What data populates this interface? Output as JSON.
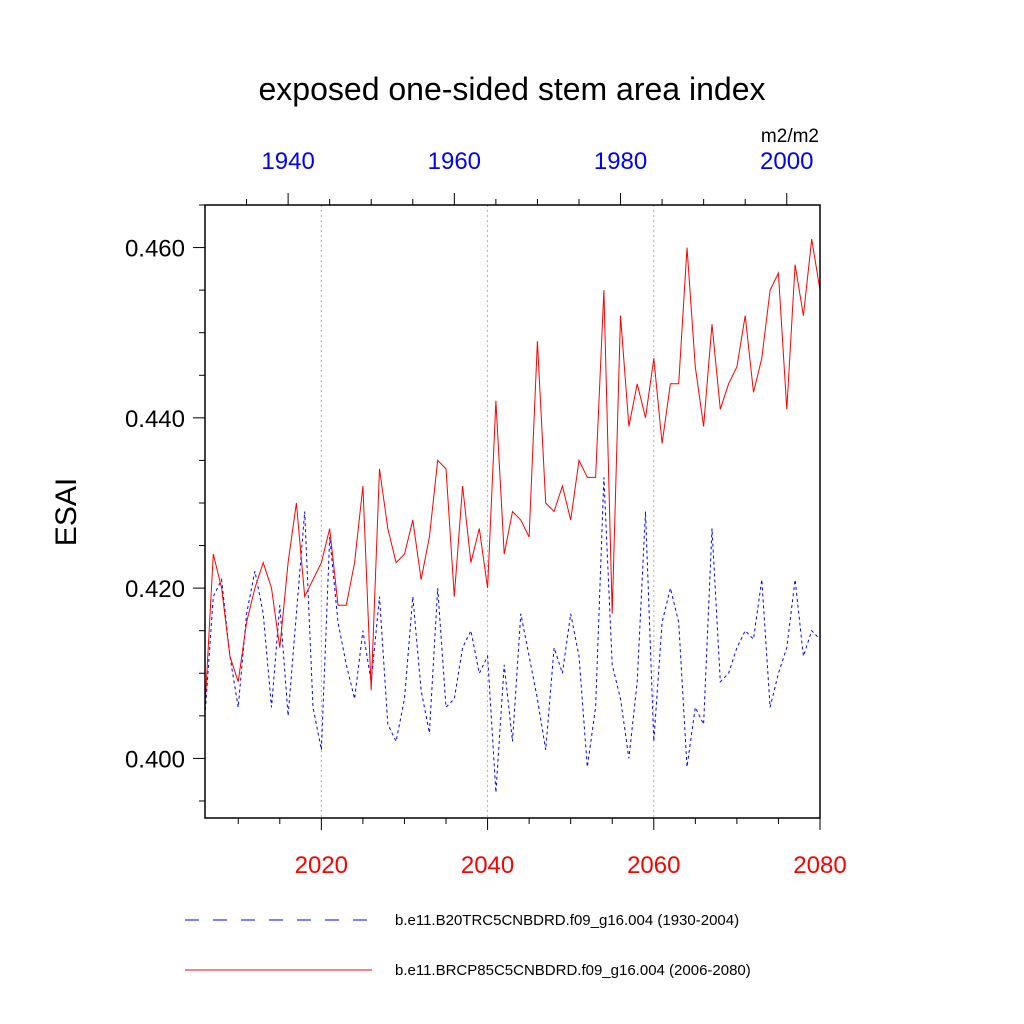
{
  "chart_data": {
    "type": "line",
    "title": "exposed one-sided stem area index",
    "ylabel": "ESAI",
    "units": "m2/m2",
    "ylim": [
      0.393,
      0.465
    ],
    "yticks": [
      "0.400",
      "0.420",
      "0.440",
      "0.460"
    ],
    "bottom_axis": {
      "range": [
        2006,
        2080
      ],
      "ticks": [
        "2020",
        "2040",
        "2060",
        "2080"
      ],
      "color": "#ff0000"
    },
    "top_axis": {
      "range": [
        1930,
        2004
      ],
      "ticks": [
        "1940",
        "1960",
        "1980",
        "2000"
      ],
      "color": "#0000ff"
    },
    "grid": "vertical dotted at 2020, 2040, 2060",
    "legend_position": "bottom",
    "series": [
      {
        "name": "b.e11.B20TRC5CNBDRD.f09_g16.004 (1930-2004)",
        "color": "#0000ff",
        "style": "dashed",
        "x": [
          1930,
          1931,
          1932,
          1933,
          1934,
          1935,
          1936,
          1937,
          1938,
          1939,
          1940,
          1941,
          1942,
          1943,
          1944,
          1945,
          1946,
          1947,
          1948,
          1949,
          1950,
          1951,
          1952,
          1953,
          1954,
          1955,
          1956,
          1957,
          1958,
          1959,
          1960,
          1961,
          1962,
          1963,
          1964,
          1965,
          1966,
          1967,
          1968,
          1969,
          1970,
          1971,
          1972,
          1973,
          1974,
          1975,
          1976,
          1977,
          1978,
          1979,
          1980,
          1981,
          1982,
          1983,
          1984,
          1985,
          1986,
          1987,
          1988,
          1989,
          1990,
          1991,
          1992,
          1993,
          1994,
          1995,
          1996,
          1997,
          1998,
          1999,
          2000,
          2001,
          2002,
          2003,
          2004
        ],
        "values": [
          0.405,
          0.419,
          0.421,
          0.412,
          0.406,
          0.417,
          0.422,
          0.417,
          0.406,
          0.418,
          0.405,
          0.417,
          0.429,
          0.406,
          0.401,
          0.426,
          0.416,
          0.411,
          0.407,
          0.415,
          0.409,
          0.419,
          0.404,
          0.402,
          0.407,
          0.419,
          0.408,
          0.403,
          0.42,
          0.406,
          0.407,
          0.413,
          0.415,
          0.41,
          0.412,
          0.396,
          0.411,
          0.402,
          0.417,
          0.412,
          0.407,
          0.401,
          0.413,
          0.41,
          0.417,
          0.412,
          0.399,
          0.406,
          0.433,
          0.411,
          0.407,
          0.4,
          0.409,
          0.429,
          0.402,
          0.416,
          0.42,
          0.416,
          0.399,
          0.406,
          0.404,
          0.427,
          0.409,
          0.41,
          0.413,
          0.415,
          0.414,
          0.421,
          0.406,
          0.41,
          0.413,
          0.421,
          0.412,
          0.415,
          0.414
        ]
      },
      {
        "name": "b.e11.BRCP85C5CNBDRD.f09_g16.004 (2006-2080)",
        "color": "#ff0000",
        "style": "solid",
        "x": [
          2006,
          2007,
          2008,
          2009,
          2010,
          2011,
          2012,
          2013,
          2014,
          2015,
          2016,
          2017,
          2018,
          2019,
          2020,
          2021,
          2022,
          2023,
          2024,
          2025,
          2026,
          2027,
          2028,
          2029,
          2030,
          2031,
          2032,
          2033,
          2034,
          2035,
          2036,
          2037,
          2038,
          2039,
          2040,
          2041,
          2042,
          2043,
          2044,
          2045,
          2046,
          2047,
          2048,
          2049,
          2050,
          2051,
          2052,
          2053,
          2054,
          2055,
          2056,
          2057,
          2058,
          2059,
          2060,
          2061,
          2062,
          2063,
          2064,
          2065,
          2066,
          2067,
          2068,
          2069,
          2070,
          2071,
          2072,
          2073,
          2074,
          2075,
          2076,
          2077,
          2078,
          2079,
          2080
        ],
        "values": [
          0.406,
          0.424,
          0.42,
          0.412,
          0.409,
          0.416,
          0.42,
          0.423,
          0.42,
          0.413,
          0.423,
          0.43,
          0.419,
          0.421,
          0.423,
          0.427,
          0.418,
          0.418,
          0.423,
          0.432,
          0.408,
          0.434,
          0.427,
          0.423,
          0.424,
          0.428,
          0.421,
          0.426,
          0.435,
          0.434,
          0.419,
          0.432,
          0.423,
          0.427,
          0.42,
          0.442,
          0.424,
          0.429,
          0.428,
          0.426,
          0.449,
          0.43,
          0.429,
          0.432,
          0.428,
          0.435,
          0.433,
          0.433,
          0.455,
          0.417,
          0.452,
          0.439,
          0.444,
          0.44,
          0.447,
          0.437,
          0.444,
          0.444,
          0.46,
          0.446,
          0.439,
          0.451,
          0.441,
          0.444,
          0.446,
          0.452,
          0.443,
          0.447,
          0.455,
          0.457,
          0.441,
          0.458,
          0.452,
          0.461,
          0.455
        ]
      }
    ]
  }
}
